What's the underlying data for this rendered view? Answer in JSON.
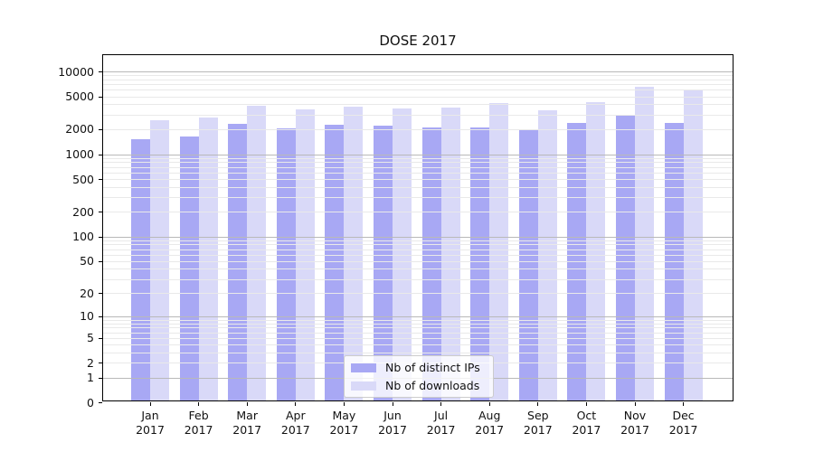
{
  "chart_data": {
    "type": "bar",
    "title": "DOSE 2017",
    "y_scale": "log1p",
    "categories": [
      "Jan 2017",
      "Feb 2017",
      "Mar 2017",
      "Apr 2017",
      "May 2017",
      "Jun 2017",
      "Jul 2017",
      "Aug 2017",
      "Sep 2017",
      "Oct 2017",
      "Nov 2017",
      "Dec 2017"
    ],
    "series": [
      {
        "name": "Nb of distinct IPs",
        "color": "#a8a8f4",
        "values": [
          1430,
          1560,
          2220,
          1960,
          2170,
          2100,
          2010,
          1980,
          1910,
          2250,
          2790,
          2260
        ]
      },
      {
        "name": "Nb of downloads",
        "color": "#d9d9f8",
        "values": [
          2420,
          2650,
          3630,
          3280,
          3560,
          3390,
          3500,
          3940,
          3200,
          4010,
          6150,
          5600
        ]
      }
    ],
    "ytick_values": [
      0,
      1,
      2,
      5,
      10,
      20,
      50,
      100,
      200,
      500,
      1000,
      2000,
      5000,
      10000
    ],
    "ytick_labels": [
      "0",
      "1",
      "2",
      "5",
      "10",
      "20",
      "50",
      "100",
      "200",
      "500",
      "1000",
      "2000",
      "5000",
      "10000"
    ],
    "ylim": [
      0,
      15700
    ],
    "xlabel": "",
    "ylabel": "",
    "grid": "major-and-minor",
    "legend_position": "lower center inside"
  },
  "colors": {
    "bar_dark": "#a8a8f4",
    "bar_light": "#d9d9f8",
    "grid_minor": "#e9e9e9",
    "grid_major": "#b9b9b9",
    "spine": "#000000",
    "background": "#ffffff"
  }
}
